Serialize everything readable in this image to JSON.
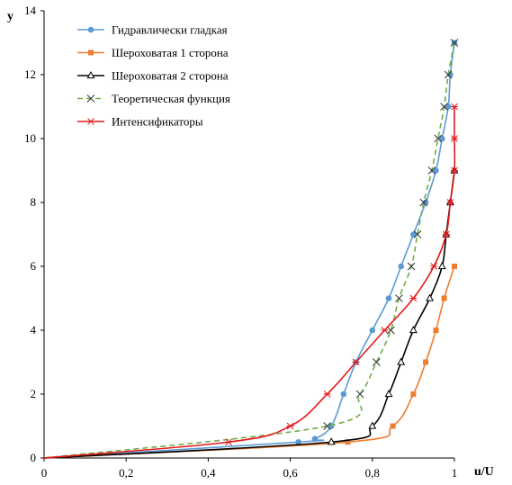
{
  "chart_data": {
    "type": "line",
    "xlabel": "u/U",
    "ylabel": "y",
    "xlim": [
      0,
      1
    ],
    "ylim": [
      0,
      14
    ],
    "x_ticks": [
      "0",
      "0,2",
      "0,4",
      "0,6",
      "0,8",
      "1"
    ],
    "y_ticks": [
      "0",
      "2",
      "4",
      "6",
      "8",
      "10",
      "12",
      "14"
    ],
    "grid": false,
    "legend_position": "top-left",
    "series": [
      {
        "name": "Гидравлически гладкая",
        "color": "#5b9bd5",
        "marker": "circle",
        "dash": "solid",
        "points": [
          [
            0,
            0
          ],
          [
            0.62,
            0.5
          ],
          [
            0.66,
            0.6
          ],
          [
            0.7,
            1
          ],
          [
            0.73,
            2
          ],
          [
            0.76,
            3
          ],
          [
            0.8,
            4
          ],
          [
            0.84,
            5
          ],
          [
            0.87,
            6
          ],
          [
            0.9,
            7
          ],
          [
            0.93,
            8
          ],
          [
            0.955,
            9
          ],
          [
            0.97,
            10
          ],
          [
            0.985,
            11
          ],
          [
            0.99,
            12
          ],
          [
            1.0,
            13
          ]
        ]
      },
      {
        "name": "Шероховатая 1 сторона",
        "color": "#ed7d31",
        "marker": "square",
        "dash": "solid",
        "points": [
          [
            0,
            0
          ],
          [
            0.74,
            0.5
          ],
          [
            0.85,
            1
          ],
          [
            0.9,
            2
          ],
          [
            0.93,
            3
          ],
          [
            0.955,
            4
          ],
          [
            0.975,
            5
          ],
          [
            1.0,
            6
          ]
        ]
      },
      {
        "name": "Шероховатая 2 сторона",
        "color": "#000000",
        "marker": "triangle",
        "dash": "solid",
        "points": [
          [
            0,
            0
          ],
          [
            0.7,
            0.5
          ],
          [
            0.8,
            1
          ],
          [
            0.84,
            2
          ],
          [
            0.87,
            3
          ],
          [
            0.9,
            4
          ],
          [
            0.94,
            5
          ],
          [
            0.97,
            6
          ],
          [
            0.98,
            7
          ],
          [
            0.99,
            8
          ],
          [
            1.0,
            9
          ]
        ]
      },
      {
        "name": "Теоретическая функция",
        "color": "#70ad47",
        "marker": "x",
        "dash": "dashed",
        "points": [
          [
            0,
            0
          ],
          [
            0.69,
            1
          ],
          [
            0.77,
            2
          ],
          [
            0.81,
            3
          ],
          [
            0.845,
            4
          ],
          [
            0.865,
            5
          ],
          [
            0.895,
            6
          ],
          [
            0.91,
            7
          ],
          [
            0.925,
            8
          ],
          [
            0.945,
            9
          ],
          [
            0.96,
            10
          ],
          [
            0.975,
            11
          ],
          [
            0.985,
            12
          ],
          [
            1.0,
            13
          ]
        ]
      },
      {
        "name": "Интенсификаторы",
        "color": "#e31a1c",
        "marker": "asterisk",
        "dash": "solid",
        "points": [
          [
            0,
            0
          ],
          [
            0.45,
            0.5
          ],
          [
            0.6,
            1
          ],
          [
            0.69,
            2
          ],
          [
            0.76,
            3
          ],
          [
            0.83,
            4
          ],
          [
            0.9,
            5
          ],
          [
            0.95,
            6
          ],
          [
            0.98,
            7
          ],
          [
            0.99,
            8
          ],
          [
            1.0,
            9
          ],
          [
            1.0,
            10
          ],
          [
            1.0,
            11
          ]
        ]
      }
    ]
  }
}
